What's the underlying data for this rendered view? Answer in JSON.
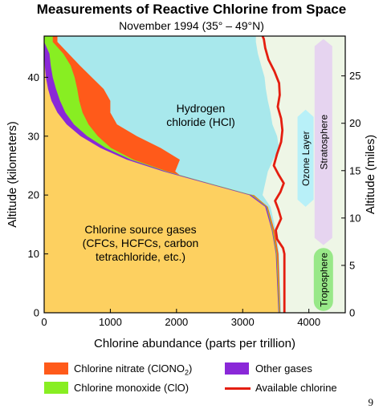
{
  "chart_data": {
    "type": "area",
    "title": "Measurements of Reactive Chlorine from Space",
    "subtitle": "November 1994 (35° – 49°N)",
    "xlabel": "Chlorine abundance (parts per trillion)",
    "ylabel": "Altitude (kilometers)",
    "y2label": "Altitude (miles)",
    "xlim": [
      0,
      4550
    ],
    "ylim": [
      0,
      47
    ],
    "y2lim": [
      0,
      29.2
    ],
    "x_ticks": [
      0,
      1000,
      2000,
      3000,
      4000
    ],
    "y_ticks": [
      0,
      10,
      20,
      30,
      40
    ],
    "y2_ticks": [
      0,
      5,
      10,
      15,
      20,
      25
    ],
    "grid": false,
    "legend_position": "bottom",
    "colors": {
      "source": "#fdd060",
      "other": "#8a28d8",
      "clo": "#88ee22",
      "nitrate": "#ff5a1a",
      "hcl": "#a8e8ec",
      "right_bg": "#eef6e6",
      "available": "#e41e10",
      "ozone_layer": "#b8f0f8",
      "stratosphere": "#e6d4f0",
      "troposphere": "#98e888"
    },
    "series": [
      {
        "name": "Chlorine source gases",
        "key": "source",
        "alt": [
          0,
          10,
          14,
          18,
          20,
          22,
          24,
          26,
          28,
          30,
          32,
          34,
          36,
          38,
          40,
          42,
          44,
          46
        ],
        "upper": [
          3540,
          3500,
          3440,
          3340,
          3100,
          2450,
          1800,
          1250,
          850,
          550,
          340,
          200,
          110,
          60,
          25,
          10,
          3,
          0
        ]
      },
      {
        "name": "Other gases",
        "key": "other",
        "alt": [
          0,
          10,
          14,
          18,
          20,
          22,
          24,
          26,
          28,
          30,
          32,
          34,
          36,
          38,
          40,
          42,
          44,
          46
        ],
        "upper": [
          3550,
          3510,
          3450,
          3360,
          3130,
          2480,
          1840,
          1310,
          930,
          650,
          450,
          320,
          240,
          180,
          130,
          100,
          80,
          0
        ]
      },
      {
        "name": "Chlorine monoxide (ClO)",
        "key": "clo",
        "alt": [
          0,
          10,
          14,
          18,
          20,
          22,
          24,
          26,
          28,
          30,
          32,
          34,
          36,
          38,
          40,
          42,
          44,
          46
        ],
        "upper": [
          3560,
          3520,
          3460,
          3370,
          3150,
          2500,
          1860,
          1350,
          1010,
          810,
          670,
          580,
          530,
          500,
          460,
          400,
          290,
          130
        ]
      },
      {
        "name": "Chlorine nitrate (ClONO2)",
        "key": "nitrate",
        "alt": [
          0,
          10,
          14,
          18,
          20,
          22,
          24,
          26,
          28,
          30,
          32,
          34,
          36,
          38,
          40,
          42,
          44,
          46
        ],
        "upper": [
          3570,
          3540,
          3480,
          3380,
          3170,
          2200,
          1980,
          2050,
          1760,
          1400,
          1100,
          1000,
          1000,
          900,
          720,
          540,
          370,
          200
        ]
      },
      {
        "name": "Hydrogen chloride (HCl)",
        "key": "hcl",
        "alt": [
          0,
          10,
          14,
          18,
          20,
          22,
          24,
          26,
          28,
          30,
          32,
          34,
          36,
          38,
          40,
          42,
          44,
          46
        ],
        "upper": [
          3580,
          3550,
          3500,
          3420,
          3300,
          3340,
          3380,
          3460,
          3550,
          3520,
          3450,
          3420,
          3380,
          3350,
          3330,
          3280,
          3230,
          3200
        ]
      }
    ],
    "available_chlorine": {
      "name": "Available chlorine",
      "alt": [
        0,
        5,
        10,
        11,
        12.5,
        14,
        16,
        17.5,
        19,
        20.5,
        22,
        23.5,
        25,
        27,
        29,
        31,
        33,
        35,
        37,
        39,
        41,
        43,
        45,
        46.5,
        47
      ],
      "x": [
        3630,
        3630,
        3630,
        3610,
        3520,
        3500,
        3580,
        3540,
        3490,
        3570,
        3620,
        3540,
        3470,
        3520,
        3580,
        3600,
        3580,
        3530,
        3560,
        3550,
        3480,
        3390,
        3340,
        3320,
        3300
      ]
    },
    "annotations": {
      "hcl": [
        "Hydrogen",
        "chloride (HCl)"
      ],
      "source": [
        "Chlorine source gases",
        "(CFCs, HCFCs, carbon",
        "tetrachloride, etc.)"
      ],
      "ozone_layer": "Ozone Layer",
      "stratosphere": "Stratosphere",
      "troposphere": "Troposphere"
    },
    "legend": [
      {
        "label": "Chlorine nitrate (ClONO",
        "sub": "2",
        "tail": ")",
        "color_key": "nitrate",
        "kind": "swatch"
      },
      {
        "label": "Other gases",
        "color_key": "other",
        "kind": "swatch"
      },
      {
        "label": "Chlorine monoxide (ClO)",
        "color_key": "clo",
        "kind": "swatch"
      },
      {
        "label": "Available chlorine",
        "color_key": "available",
        "kind": "line"
      }
    ]
  },
  "page_number": "9"
}
